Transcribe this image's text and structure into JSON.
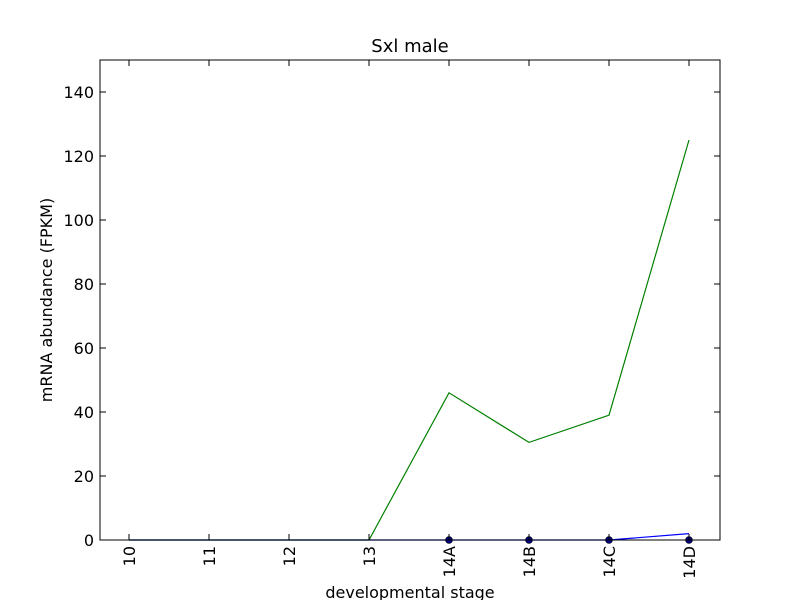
{
  "chart_data": {
    "type": "line",
    "title": "Sxl male",
    "xlabel": "developmental stage",
    "ylabel": "mRNA abundance (FPKM)",
    "categories": [
      "10",
      "11",
      "12",
      "13",
      "14A",
      "14B",
      "14C",
      "14D"
    ],
    "ylim": [
      0,
      150
    ],
    "yticks": [
      0,
      20,
      40,
      60,
      80,
      100,
      120,
      140
    ],
    "grid": false,
    "legend": "none",
    "series": [
      {
        "color": "#008000",
        "markers": false,
        "values": [
          0,
          0,
          0,
          0,
          46,
          30.5,
          39,
          125
        ]
      },
      {
        "color": "#0000ff",
        "markers": false,
        "values": [
          0,
          0,
          0,
          0,
          0,
          0,
          0,
          2
        ]
      },
      {
        "color": "#000080",
        "markers": true,
        "marker_x_indices": [
          4,
          5,
          6,
          7
        ],
        "values": [
          0,
          0,
          0,
          0,
          0,
          0,
          0,
          0
        ]
      }
    ]
  }
}
